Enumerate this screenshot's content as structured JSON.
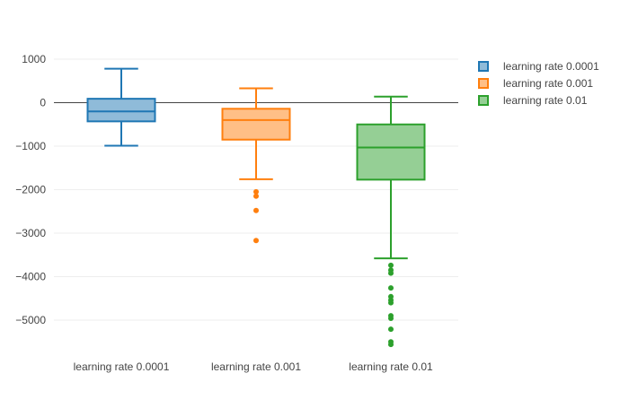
{
  "chart_data": {
    "type": "box",
    "title": "",
    "xlabel": "",
    "ylabel": "",
    "ylim": [
      -5900,
      1000
    ],
    "yticks": [
      1000,
      0,
      -1000,
      -2000,
      -3000,
      -4000,
      -5000
    ],
    "ytick_labels": [
      "1000",
      "0",
      "−1000",
      "−2000",
      "−3000",
      "−4000",
      "−5000"
    ],
    "zeroline": true,
    "grid": true,
    "legend_position": "top-right",
    "series": [
      {
        "name": "learning rate 0.0001",
        "color": "#1f77b4",
        "fill": "#8fbbd9",
        "whisker_high": 780,
        "q3": 90,
        "median": -200,
        "q1": -430,
        "whisker_low": -990,
        "outliers": []
      },
      {
        "name": "learning rate 0.001",
        "color": "#ff7f0e",
        "fill": "#ffbf86",
        "whisker_high": 330,
        "q3": -140,
        "median": -400,
        "q1": -850,
        "whisker_low": -1760,
        "outliers": [
          -2050,
          -2150,
          -2480,
          -3170
        ]
      },
      {
        "name": "learning rate 0.01",
        "color": "#2ca02c",
        "fill": "#95cf95",
        "whisker_high": 140,
        "q3": -500,
        "median": -1030,
        "q1": -1770,
        "whisker_low": -3580,
        "outliers": [
          -3740,
          -3850,
          -3920,
          -4260,
          -4460,
          -4540,
          -4600,
          -4900,
          -4960,
          -5210,
          -5500,
          -5560
        ]
      }
    ]
  }
}
